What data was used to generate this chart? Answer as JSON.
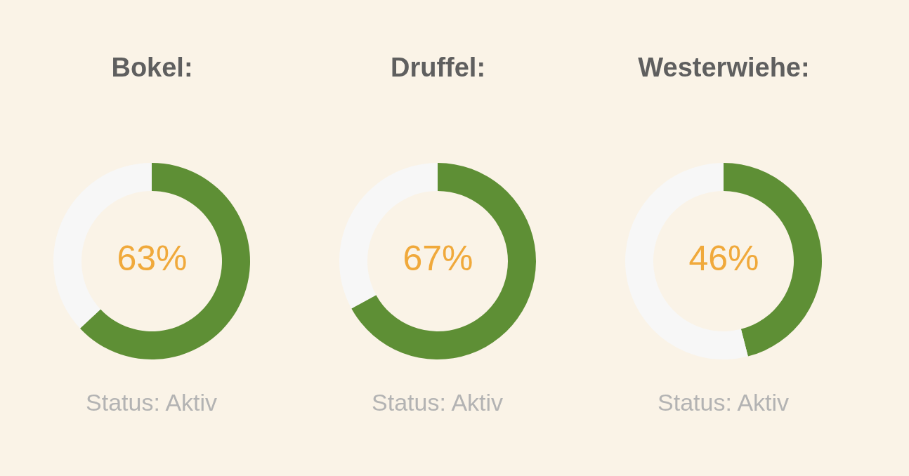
{
  "chart_data": [
    {
      "type": "donut",
      "title": "Bokel:",
      "categories": [
        null,
        null
      ],
      "values": [
        63,
        37
      ],
      "colors": [
        "#5e8f35",
        "#f7f7f7"
      ],
      "annotations": [
        "63%",
        "Status: Aktiv"
      ]
    },
    {
      "type": "donut",
      "title": "Druffel:",
      "categories": [
        null,
        null
      ],
      "values": [
        67,
        33
      ],
      "colors": [
        "#5e8f35",
        "#f7f7f7"
      ],
      "annotations": [
        "67%",
        "Status: Aktiv"
      ]
    },
    {
      "type": "donut",
      "title": "Westerwiehe:",
      "categories": [
        null,
        null
      ],
      "values": [
        46,
        54
      ],
      "colors": [
        "#5e8f35",
        "#f7f7f7"
      ],
      "annotations": [
        "46%",
        "Status: Aktiv"
      ]
    }
  ]
}
